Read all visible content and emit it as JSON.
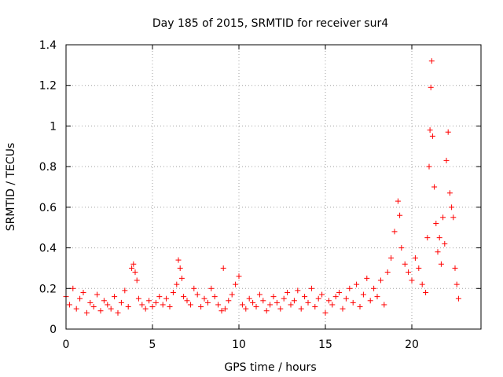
{
  "chart_data": {
    "type": "scatter",
    "title": "Day 185 of 2015, SRMTID for receiver sur4",
    "xlabel": "GPS time / hours",
    "ylabel": "SRMTID / TECUs",
    "xlim": [
      0,
      24
    ],
    "ylim": [
      0,
      1.4
    ],
    "x_ticks": [
      0,
      5,
      10,
      15,
      20
    ],
    "x_tick_labels": [
      "0",
      "5",
      "10",
      "15",
      "20"
    ],
    "y_ticks": [
      0,
      0.2,
      0.4,
      0.6,
      0.8,
      1.0,
      1.2,
      1.4
    ],
    "y_tick_labels": [
      "0",
      "0.2",
      "0.4",
      "0.6",
      "0.8",
      "1",
      "1.2",
      "1.4"
    ],
    "grid": true,
    "marker": "+",
    "color": "#ff0000",
    "series": [
      {
        "name": "SRMTID",
        "x": [
          0.0,
          0.2,
          0.4,
          0.6,
          0.8,
          1.0,
          1.2,
          1.4,
          1.6,
          1.8,
          2.0,
          2.2,
          2.4,
          2.6,
          2.8,
          3.0,
          3.2,
          3.4,
          3.6,
          3.8,
          3.9,
          4.0,
          4.1,
          4.2,
          4.4,
          4.6,
          4.8,
          5.0,
          5.2,
          5.4,
          5.6,
          5.8,
          6.0,
          6.2,
          6.4,
          6.5,
          6.6,
          6.7,
          6.8,
          7.0,
          7.2,
          7.4,
          7.6,
          7.8,
          8.0,
          8.2,
          8.4,
          8.6,
          8.8,
          9.0,
          9.1,
          9.2,
          9.4,
          9.6,
          9.8,
          10.0,
          10.2,
          10.4,
          10.6,
          10.8,
          11.0,
          11.2,
          11.4,
          11.6,
          11.8,
          12.0,
          12.2,
          12.4,
          12.6,
          12.8,
          13.0,
          13.2,
          13.4,
          13.6,
          13.8,
          14.0,
          14.2,
          14.4,
          14.6,
          14.8,
          15.0,
          15.2,
          15.4,
          15.6,
          15.8,
          16.0,
          16.2,
          16.4,
          16.6,
          16.8,
          17.0,
          17.2,
          17.4,
          17.6,
          17.8,
          18.0,
          18.2,
          18.4,
          18.6,
          18.8,
          19.0,
          19.2,
          19.3,
          19.4,
          19.6,
          19.8,
          20.0,
          20.2,
          20.4,
          20.6,
          20.8,
          20.9,
          21.0,
          21.05,
          21.1,
          21.15,
          21.2,
          21.3,
          21.4,
          21.5,
          21.6,
          21.7,
          21.8,
          21.9,
          22.0,
          22.1,
          22.2,
          22.3,
          22.4,
          22.5,
          22.6,
          22.7
        ],
        "values": [
          0.16,
          0.12,
          0.2,
          0.1,
          0.15,
          0.18,
          0.08,
          0.13,
          0.11,
          0.17,
          0.09,
          0.14,
          0.12,
          0.1,
          0.16,
          0.08,
          0.13,
          0.19,
          0.11,
          0.3,
          0.32,
          0.28,
          0.24,
          0.15,
          0.12,
          0.1,
          0.14,
          0.11,
          0.13,
          0.16,
          0.12,
          0.15,
          0.11,
          0.18,
          0.22,
          0.34,
          0.3,
          0.25,
          0.16,
          0.14,
          0.12,
          0.2,
          0.17,
          0.11,
          0.15,
          0.13,
          0.2,
          0.16,
          0.12,
          0.09,
          0.3,
          0.1,
          0.14,
          0.17,
          0.22,
          0.26,
          0.12,
          0.1,
          0.15,
          0.13,
          0.11,
          0.17,
          0.14,
          0.09,
          0.12,
          0.16,
          0.13,
          0.1,
          0.15,
          0.18,
          0.12,
          0.14,
          0.19,
          0.1,
          0.16,
          0.13,
          0.2,
          0.11,
          0.15,
          0.17,
          0.08,
          0.14,
          0.12,
          0.16,
          0.18,
          0.1,
          0.15,
          0.2,
          0.13,
          0.22,
          0.11,
          0.17,
          0.25,
          0.14,
          0.2,
          0.16,
          0.24,
          0.12,
          0.28,
          0.35,
          0.48,
          0.63,
          0.56,
          0.4,
          0.32,
          0.28,
          0.24,
          0.35,
          0.3,
          0.22,
          0.18,
          0.45,
          0.8,
          0.98,
          1.19,
          1.32,
          0.95,
          0.7,
          0.52,
          0.38,
          0.45,
          0.32,
          0.55,
          0.42,
          0.83,
          0.97,
          0.67,
          0.6,
          0.55,
          0.3,
          0.22,
          0.15
        ]
      }
    ]
  }
}
